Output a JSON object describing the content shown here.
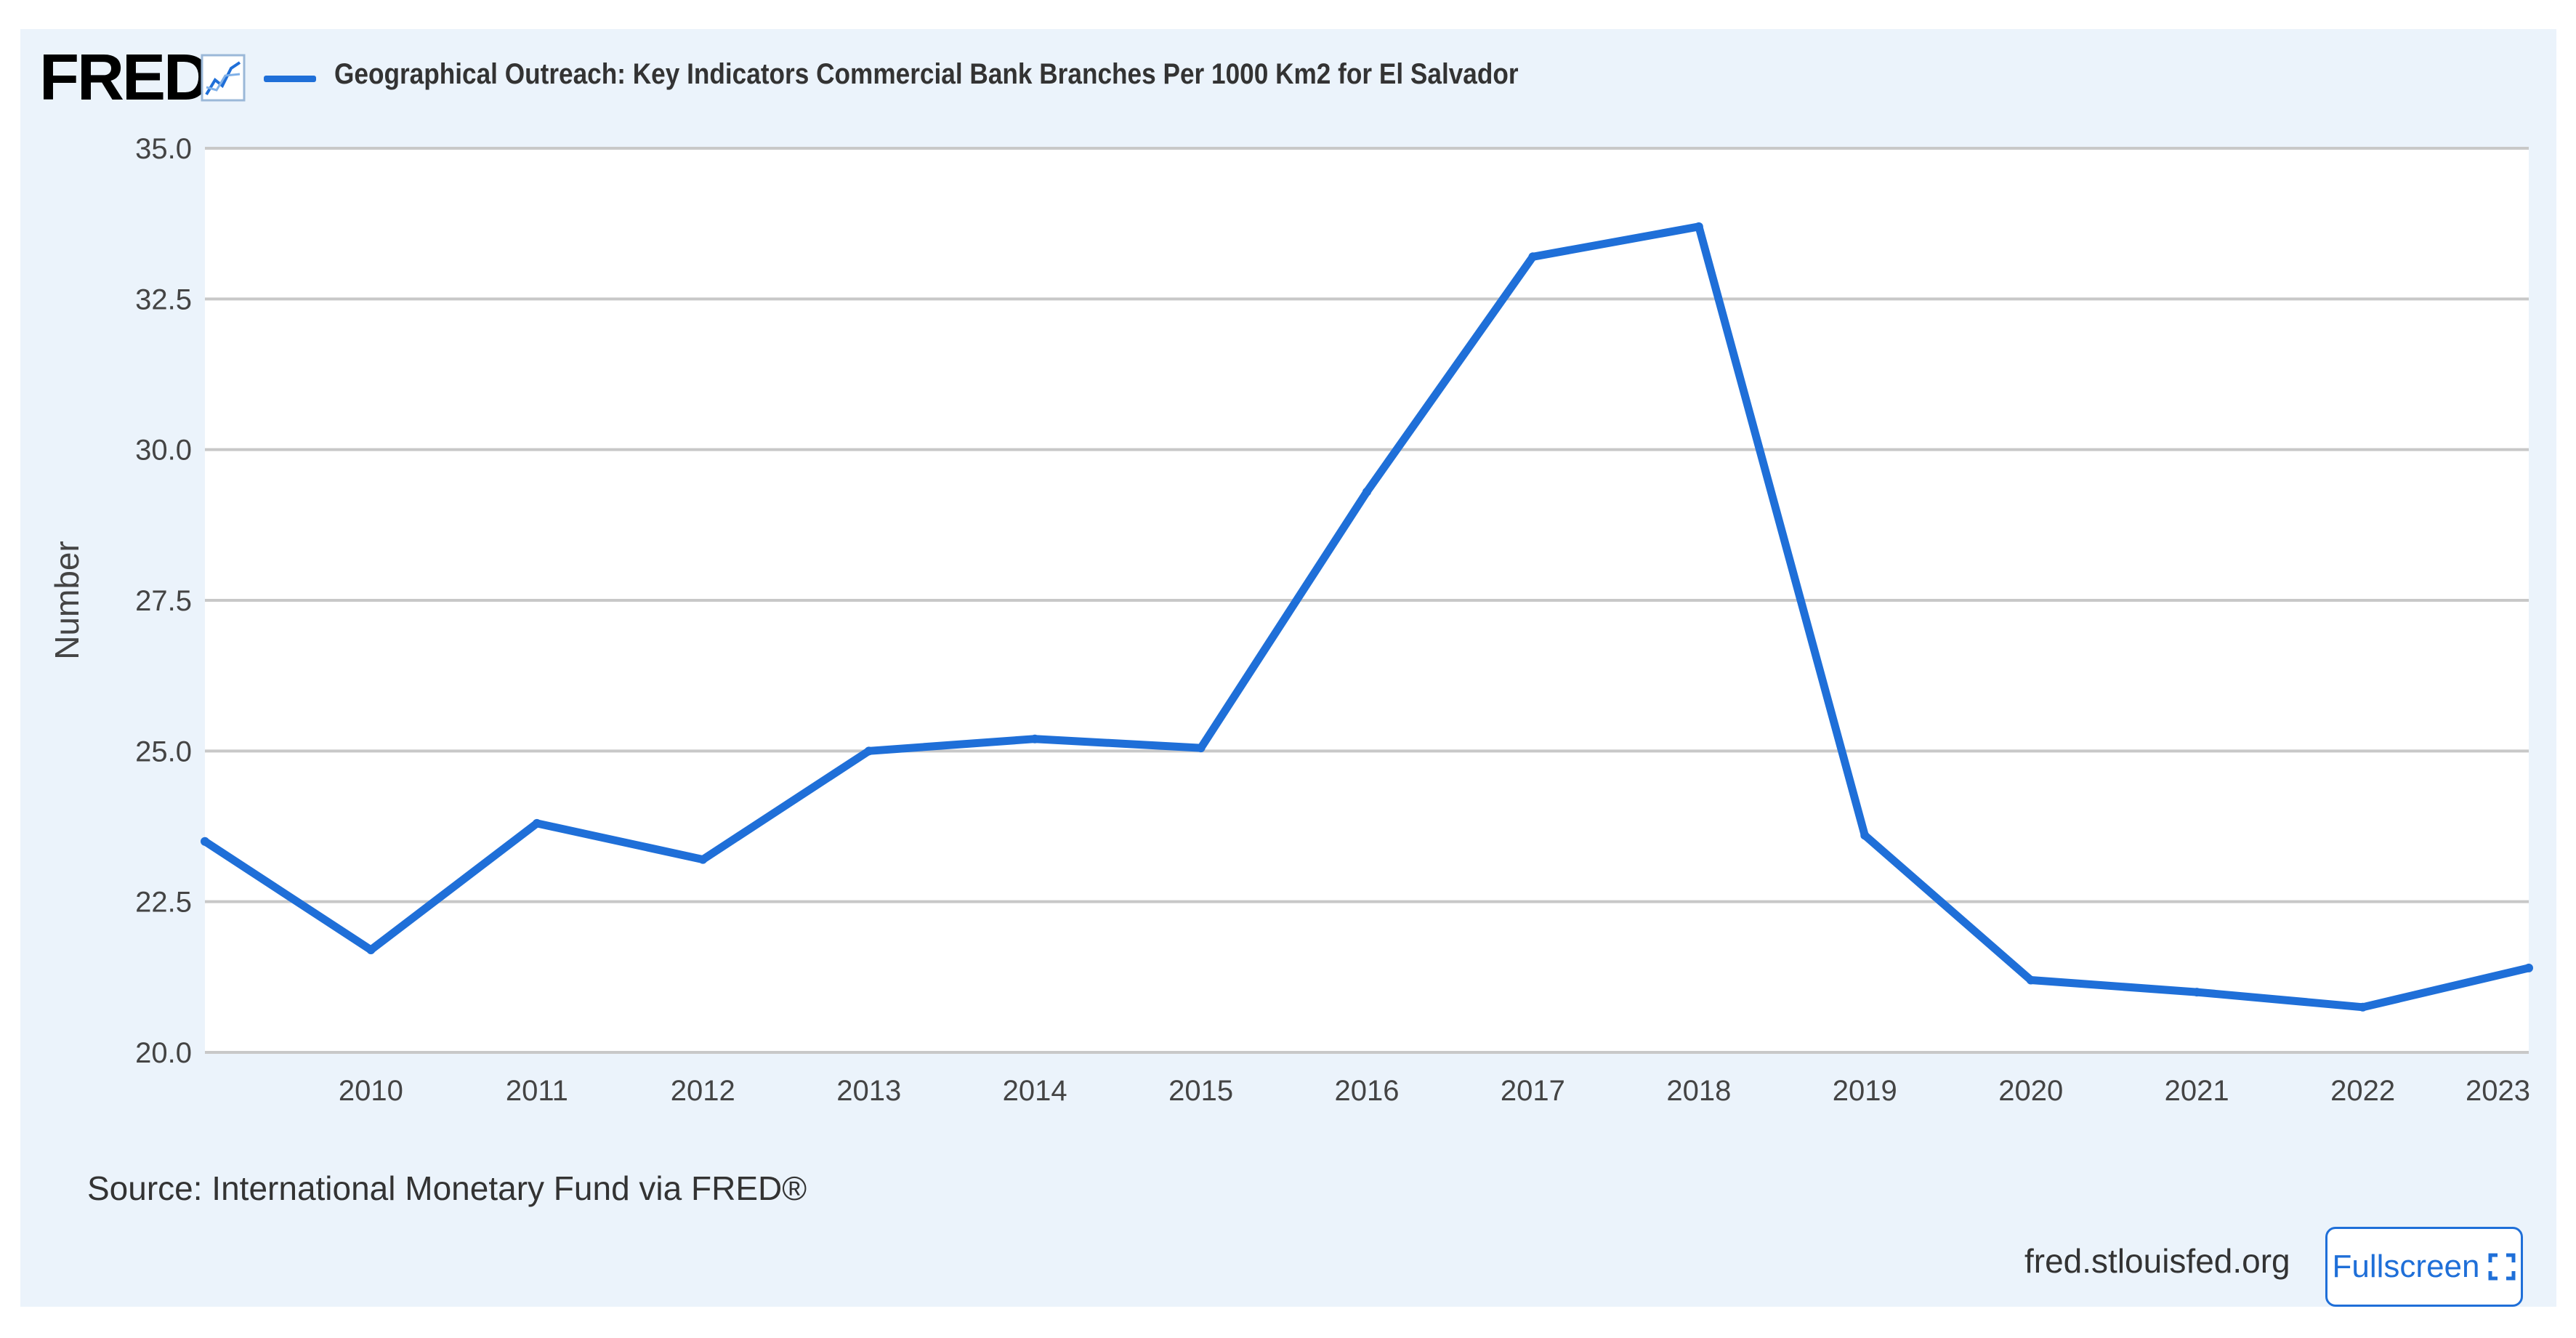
{
  "header": {
    "logo_text": "FRED",
    "series_title": "Geographical Outreach: Key Indicators Commercial Bank Branches Per 1000 Km2 for El Salvador"
  },
  "footer": {
    "source": "Source: International Monetary Fund via FRED®",
    "site": "fred.stlouisfed.org",
    "fullscreen_label": "Fullscreen"
  },
  "colors": {
    "series": "#1f6fd8",
    "grid": "#c8c8c8",
    "background": "#ebf3fb",
    "plot": "#ffffff"
  },
  "icons": {
    "logo_graph": "line-graph-icon",
    "fullscreen": "fullscreen-corners-icon"
  },
  "chart_data": {
    "type": "line",
    "title": "",
    "xlabel": "",
    "ylabel": "Number",
    "ylim": [
      20,
      35
    ],
    "xlim": [
      2009,
      2023
    ],
    "y_ticks": [
      "20.0",
      "22.5",
      "25.0",
      "27.5",
      "30.0",
      "32.5",
      "35.0"
    ],
    "x_ticks": [
      "2010",
      "2011",
      "2012",
      "2013",
      "2014",
      "2015",
      "2016",
      "2017",
      "2018",
      "2019",
      "2020",
      "2021",
      "2022",
      "2023"
    ],
    "grid": true,
    "legend": "top-left",
    "series": [
      {
        "name": "Geographical Outreach: Key Indicators Commercial Bank Branches Per 1000 Km2 for El Salvador",
        "x": [
          2009,
          2010,
          2011,
          2012,
          2013,
          2014,
          2015,
          2016,
          2017,
          2018,
          2019,
          2020,
          2021,
          2022,
          2023
        ],
        "values": [
          23.5,
          21.7,
          23.8,
          23.2,
          25.0,
          25.2,
          25.05,
          29.3,
          33.2,
          33.7,
          23.6,
          21.2,
          21.0,
          20.75,
          21.4
        ]
      }
    ]
  }
}
